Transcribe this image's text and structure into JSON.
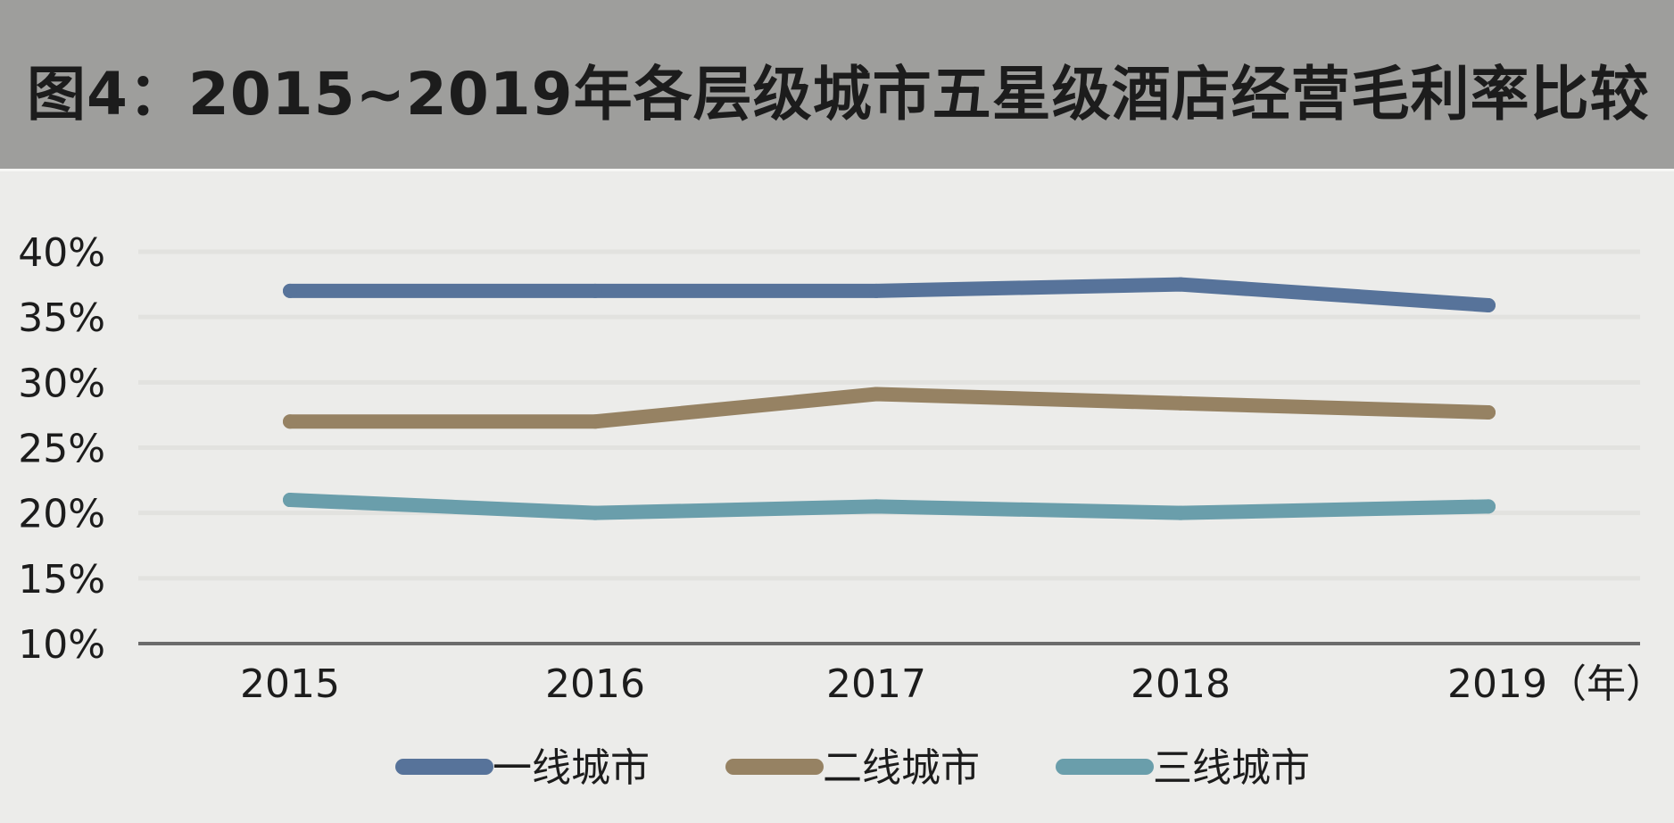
{
  "title": "图4：2015~2019年各层级城市五星级酒店经营毛利率比较",
  "colors": {
    "header_bg": "#9e9e9c",
    "plot_bg": "#ececea",
    "gridline": "#e2e2df",
    "axis": "#6b6b6b"
  },
  "chart_data": {
    "type": "line",
    "title": "图4：2015~2019年各层级城市五星级酒店经营毛利率比较",
    "x": [
      "2015",
      "2016",
      "2017",
      "2018",
      "2019"
    ],
    "x_tick_labels": [
      "2015",
      "2016",
      "2017",
      "2018",
      "2019（年）"
    ],
    "y_tick_labels": [
      "40%",
      "35%",
      "30%",
      "25%",
      "20%",
      "15%",
      "10%"
    ],
    "ylim": [
      10,
      40
    ],
    "y_ticks": [
      40,
      35,
      30,
      25,
      20,
      15,
      10
    ],
    "grid": true,
    "legend_position": "bottom",
    "series": [
      {
        "name": "一线城市",
        "color": "#57739a",
        "values": [
          37.0,
          37.0,
          37.0,
          37.5,
          35.9
        ]
      },
      {
        "name": "二线城市",
        "color": "#968263",
        "values": [
          27.0,
          27.0,
          29.1,
          28.4,
          27.7
        ]
      },
      {
        "name": "三线城市",
        "color": "#6a9eab",
        "values": [
          21.0,
          20.0,
          20.5,
          20.0,
          20.5
        ]
      }
    ]
  }
}
